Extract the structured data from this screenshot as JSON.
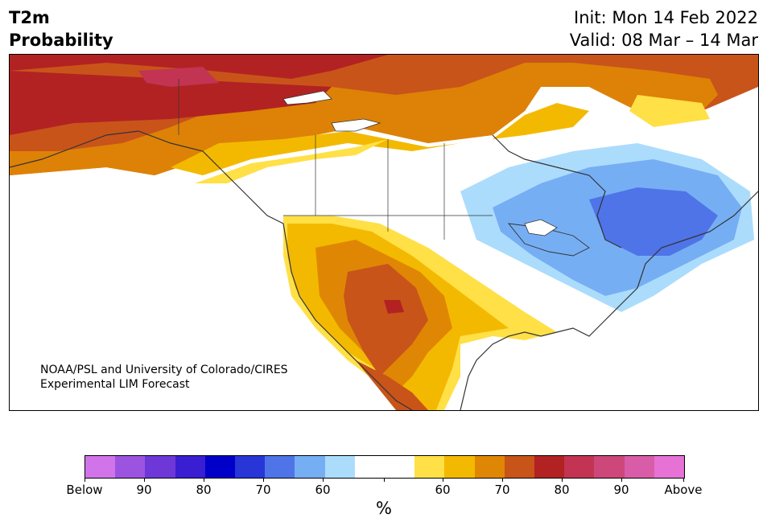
{
  "title": {
    "line1": "T2m",
    "line2": "Probability"
  },
  "dates": {
    "init": "Init: Mon 14 Feb 2022",
    "valid": "Valid: 08 Mar – 14 Mar"
  },
  "credit": {
    "line1": "NOAA/PSL and University of Colorado/CIRES",
    "line2": "Experimental LIM Forecast"
  },
  "colorbar": {
    "colors": [
      "#d174ea",
      "#9c54e0",
      "#6e38d8",
      "#3a1ed2",
      "#0000c8",
      "#2836d8",
      "#4f74e8",
      "#76aef4",
      "#acdcfc",
      "#ffffff",
      "#ffffff",
      "#ffe046",
      "#f3b900",
      "#df8704",
      "#c8541a",
      "#b22222",
      "#c23452",
      "#cd477a",
      "#d95ca8",
      "#e672d6"
    ],
    "labels": [
      "Below",
      "90",
      "80",
      "70",
      "60",
      "60",
      "70",
      "80",
      "90",
      "Above"
    ],
    "unit": "%"
  },
  "map": {
    "region": "North America",
    "colors": {
      "land_outline": "#333333",
      "ocean": "#ffffff"
    }
  }
}
